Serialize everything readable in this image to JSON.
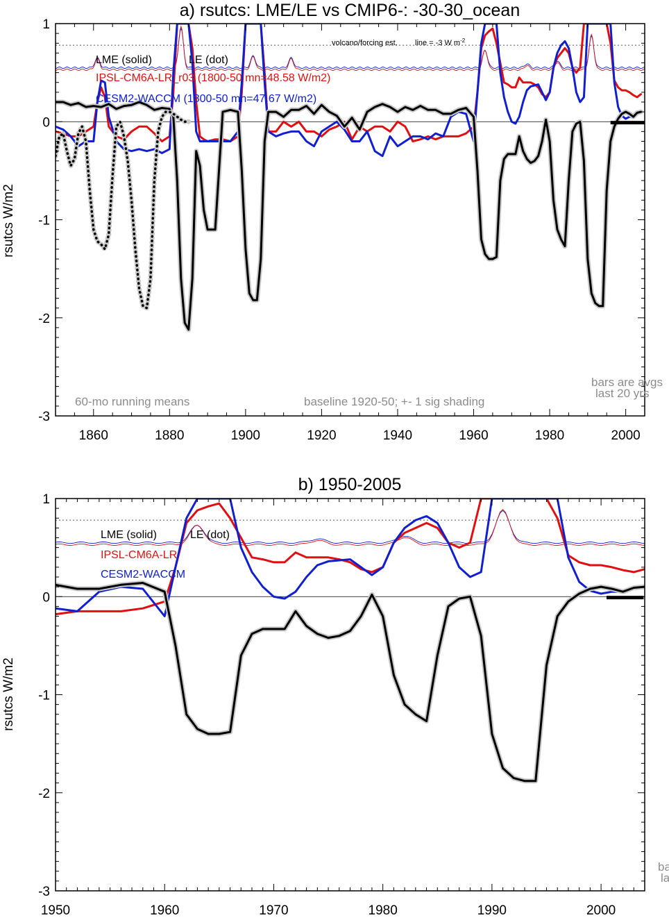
{
  "colors": {
    "lme": "#000000",
    "ipsl": "#e01010",
    "cesm": "#1020d0",
    "gray": "#8c8c8c",
    "shade": "#c8c8c8"
  },
  "notes": {
    "volcano": "volcano/forcing est.",
    "line": "line = -3 W m",
    "line_sup": "-2",
    "running": "60-mo running means",
    "baseline": "baseline 1920-50; +- 1 sig shading",
    "bars1": "bars are avgs",
    "bars2": "last 20 yrs",
    "bars1_b": "ba",
    "bars2_b": "la"
  },
  "chart_data": [
    {
      "type": "line",
      "title": "a) rsutcs: LME/LE vs CMIP6-: -30-30_ocean",
      "xlabel": "",
      "ylabel": "rsutcs W/m2",
      "xlim": [
        1850,
        2005
      ],
      "ylim": [
        -3,
        1
      ],
      "xticks": [
        1860,
        1880,
        1900,
        1920,
        1940,
        1960,
        1980,
        2000
      ],
      "yticks": [
        1,
        0,
        -1,
        -2,
        -3
      ],
      "legend": [
        "LME (solid)",
        "LE (dot)",
        "IPSL-CM6A-LR_r03 (1800-50 mn=48.58 W/m2)",
        "CESM2-WACCM (1800-50 mn=47.67 W/m2)"
      ],
      "series": [
        {
          "name": "LME (solid)",
          "color": "lme",
          "style": "solid",
          "x": [
            1850,
            1852,
            1854,
            1856,
            1858,
            1860,
            1862,
            1864,
            1866,
            1868,
            1870,
            1872,
            1874,
            1876,
            1878,
            1880,
            1881,
            1882,
            1883,
            1884,
            1885,
            1886,
            1887,
            1888,
            1889,
            1890,
            1891,
            1892,
            1894,
            1896,
            1898,
            1899,
            1900,
            1901,
            1902,
            1903,
            1904,
            1905,
            1906,
            1907,
            1908,
            1910,
            1912,
            1914,
            1916,
            1918,
            1920,
            1922,
            1924,
            1926,
            1928,
            1930,
            1932,
            1934,
            1936,
            1938,
            1940,
            1942,
            1944,
            1946,
            1948,
            1950,
            1952,
            1954,
            1956,
            1958,
            1960,
            1961,
            1962,
            1963,
            1964,
            1965,
            1966,
            1967,
            1968,
            1969,
            1970,
            1971,
            1972,
            1973,
            1974,
            1975,
            1976,
            1977,
            1978,
            1979,
            1980,
            1981,
            1982,
            1983,
            1984,
            1985,
            1986,
            1987,
            1988,
            1989,
            1990,
            1991,
            1992,
            1993,
            1994,
            1995,
            1996,
            1997,
            1998,
            1999,
            2000,
            2001,
            2002,
            2003,
            2004
          ],
          "y": [
            0.2,
            0.2,
            0.17,
            0.19,
            0.15,
            0.16,
            0.15,
            0.18,
            0.13,
            0.16,
            0.17,
            0.2,
            0.17,
            0.12,
            0.14,
            0.13,
            0.05,
            -0.6,
            -1.6,
            -2.05,
            -2.12,
            -1.6,
            -0.3,
            -0.45,
            -0.9,
            -1.1,
            -1.1,
            -1.1,
            0.1,
            0.12,
            0.1,
            -0.5,
            -1.3,
            -1.75,
            -1.82,
            -1.82,
            -1.4,
            -0.2,
            0.1,
            0.1,
            0.1,
            0.05,
            0.12,
            0.12,
            0.16,
            0.08,
            0.17,
            0.1,
            0.06,
            -0.05,
            0.04,
            -0.08,
            0.1,
            0.15,
            0.18,
            0.15,
            0.1,
            0.15,
            0.12,
            0.16,
            0.12,
            0.12,
            0.08,
            0.08,
            0.12,
            0.14,
            0.05,
            -0.5,
            -1.2,
            -1.35,
            -1.4,
            -1.4,
            -1.38,
            -0.6,
            -0.38,
            -0.33,
            -0.33,
            -0.33,
            -0.15,
            -0.3,
            -0.38,
            -0.42,
            -0.4,
            -0.35,
            -0.2,
            0.02,
            -0.2,
            -0.8,
            -1.1,
            -1.2,
            -1.27,
            -0.6,
            -0.1,
            -0.02,
            0.0,
            -0.4,
            -1.4,
            -1.75,
            -1.85,
            -1.88,
            -1.88,
            -0.7,
            -0.2,
            -0.05,
            0.03,
            0.08,
            0.1,
            0.08,
            0.05,
            0.09,
            0.1
          ]
        },
        {
          "name": "LE (dot)",
          "color": "lme",
          "style": "dot",
          "x": [
            1850,
            1851,
            1852,
            1853,
            1854,
            1855,
            1856,
            1857,
            1858,
            1859,
            1860,
            1861,
            1862,
            1863,
            1864,
            1865,
            1866,
            1867,
            1868,
            1869,
            1870,
            1871,
            1872,
            1873,
            1874,
            1875,
            1876,
            1877,
            1878,
            1879,
            1880,
            1881,
            1882,
            1883,
            1884,
            1885
          ],
          "y": [
            -0.35,
            -0.15,
            -0.12,
            -0.3,
            -0.45,
            -0.38,
            -0.12,
            -0.05,
            -0.2,
            -0.7,
            -1.1,
            -1.22,
            -1.25,
            -1.3,
            -1.15,
            -0.55,
            -0.05,
            0.0,
            -0.15,
            -0.4,
            -0.8,
            -1.3,
            -1.7,
            -1.88,
            -1.9,
            -1.6,
            -0.6,
            -0.1,
            0.05,
            0.1,
            0.1,
            0.08,
            0.05,
            0.02,
            0.0,
            0.0
          ]
        },
        {
          "name": "IPSL-CM6A-LR_r03 (1800-50 mn=48.58 W/m2)",
          "color": "ipsl",
          "style": "solid",
          "x": [
            1850,
            1852,
            1854,
            1856,
            1858,
            1860,
            1861,
            1862,
            1863,
            1864,
            1866,
            1868,
            1870,
            1872,
            1874,
            1876,
            1878,
            1880,
            1881,
            1882,
            1883,
            1884,
            1885,
            1886,
            1887,
            1888,
            1889,
            1890,
            1892,
            1894,
            1896,
            1898,
            1899,
            1900,
            1901,
            1902,
            1903,
            1904,
            1905,
            1906,
            1908,
            1910,
            1912,
            1914,
            1916,
            1918,
            1920,
            1922,
            1924,
            1926,
            1928,
            1930,
            1932,
            1934,
            1936,
            1938,
            1940,
            1942,
            1944,
            1946,
            1948,
            1950,
            1952,
            1954,
            1956,
            1958,
            1960,
            1961,
            1962,
            1963,
            1964,
            1965,
            1966,
            1967,
            1968,
            1969,
            1970,
            1971,
            1972,
            1973,
            1974,
            1975,
            1976,
            1977,
            1978,
            1979,
            1980,
            1981,
            1982,
            1983,
            1984,
            1985,
            1986,
            1987,
            1988,
            1989,
            1990,
            1991,
            1992,
            1993,
            1994,
            1995,
            1996,
            1997,
            1998,
            1999,
            2000,
            2001,
            2002,
            2003,
            2004
          ],
          "y": [
            -0.1,
            -0.12,
            -0.15,
            -0.15,
            -0.1,
            -0.05,
            0.2,
            0.35,
            0.25,
            -0.05,
            -0.15,
            -0.18,
            -0.1,
            -0.05,
            -0.05,
            -0.12,
            -0.2,
            -0.15,
            0.3,
            1.5,
            1.5,
            1.5,
            1.5,
            0.75,
            0.2,
            -0.15,
            -0.18,
            -0.2,
            -0.18,
            -0.18,
            -0.2,
            -0.15,
            0.3,
            1.5,
            1.5,
            1.5,
            1.5,
            1.2,
            0.5,
            -0.1,
            -0.1,
            0.0,
            -0.05,
            0.0,
            -0.1,
            -0.1,
            -0.15,
            -0.08,
            -0.05,
            0.0,
            -0.18,
            -0.05,
            -0.1,
            -0.05,
            -0.05,
            -0.1,
            0.0,
            -0.05,
            -0.2,
            -0.18,
            -0.15,
            -0.18,
            -0.15,
            -0.15,
            -0.15,
            -0.12,
            -0.05,
            0.3,
            0.75,
            0.88,
            0.92,
            0.95,
            0.8,
            0.6,
            0.4,
            0.38,
            0.35,
            0.35,
            0.45,
            0.4,
            0.4,
            0.4,
            0.38,
            0.35,
            0.28,
            0.25,
            0.3,
            0.55,
            0.65,
            0.7,
            0.75,
            0.7,
            0.55,
            0.5,
            0.55,
            1.2,
            1.5,
            1.5,
            1.5,
            1.5,
            1.5,
            1.5,
            0.8,
            0.42,
            0.35,
            0.32,
            0.32,
            0.3,
            0.27,
            0.25,
            0.28
          ]
        },
        {
          "name": "CESM2-WACCM (1800-50 mn=47.67 W/m2)",
          "color": "cesm",
          "style": "solid",
          "x": [
            1850,
            1852,
            1854,
            1856,
            1858,
            1860,
            1861,
            1862,
            1863,
            1864,
            1866,
            1868,
            1870,
            1872,
            1874,
            1876,
            1878,
            1880,
            1881,
            1882,
            1883,
            1884,
            1885,
            1886,
            1887,
            1888,
            1889,
            1890,
            1892,
            1894,
            1896,
            1898,
            1899,
            1900,
            1901,
            1902,
            1903,
            1904,
            1905,
            1906,
            1908,
            1910,
            1912,
            1914,
            1916,
            1918,
            1920,
            1922,
            1924,
            1926,
            1928,
            1930,
            1932,
            1934,
            1936,
            1938,
            1940,
            1942,
            1944,
            1946,
            1948,
            1950,
            1952,
            1954,
            1956,
            1958,
            1960,
            1961,
            1962,
            1963,
            1964,
            1965,
            1966,
            1967,
            1968,
            1969,
            1970,
            1971,
            1972,
            1973,
            1974,
            1975,
            1976,
            1977,
            1978,
            1979,
            1980,
            1981,
            1982,
            1983,
            1984,
            1985,
            1986,
            1987,
            1988,
            1989,
            1990,
            1991,
            1992,
            1993,
            1994,
            1995,
            1996,
            1997,
            1998,
            1999,
            2000,
            2001,
            2002,
            2003,
            2004
          ],
          "y": [
            -0.05,
            -0.08,
            -0.15,
            -0.25,
            -0.2,
            -0.2,
            0.2,
            0.42,
            0.4,
            0.05,
            -0.2,
            -0.28,
            -0.3,
            -0.28,
            -0.3,
            -0.28,
            -0.32,
            -0.28,
            0.5,
            1.5,
            1.5,
            1.5,
            1.5,
            0.6,
            -0.1,
            -0.2,
            -0.2,
            -0.2,
            -0.2,
            -0.2,
            -0.2,
            -0.1,
            0.4,
            1.5,
            1.5,
            1.5,
            1.5,
            1.1,
            0.4,
            -0.1,
            -0.15,
            -0.12,
            -0.1,
            -0.1,
            -0.2,
            -0.25,
            -0.1,
            -0.05,
            0.0,
            -0.08,
            -0.2,
            -0.2,
            -0.1,
            -0.3,
            -0.35,
            -0.15,
            -0.25,
            -0.2,
            -0.15,
            -0.15,
            -0.18,
            -0.12,
            -0.15,
            0.05,
            0.1,
            0.08,
            -0.2,
            0.3,
            0.8,
            1.5,
            1.5,
            1.5,
            1.0,
            0.5,
            0.25,
            0.1,
            0.0,
            -0.02,
            0.05,
            0.2,
            0.32,
            0.36,
            0.37,
            0.38,
            0.3,
            0.22,
            0.3,
            0.55,
            0.7,
            0.78,
            0.82,
            0.75,
            0.55,
            0.3,
            0.2,
            0.25,
            1.0,
            1.5,
            1.5,
            1.5,
            1.5,
            1.5,
            1.5,
            0.4,
            0.15,
            0.06,
            0.03,
            0.05,
            0.05,
            0.08,
            0.1
          ]
        }
      ]
    },
    {
      "type": "line",
      "title": "b) 1950-2005",
      "xlabel": "",
      "ylabel": "rsutcs W/m2",
      "xlim": [
        1950,
        2004
      ],
      "ylim": [
        -3,
        1
      ],
      "xticks": [
        1950,
        1960,
        1970,
        1980,
        1990,
        2000
      ],
      "yticks": [
        1,
        0,
        -1,
        -2,
        -3
      ],
      "legend": [
        "LME (solid)",
        "LE (dot)",
        "IPSL-CM6A-LR",
        "CESM2-WACCM"
      ]
    }
  ]
}
